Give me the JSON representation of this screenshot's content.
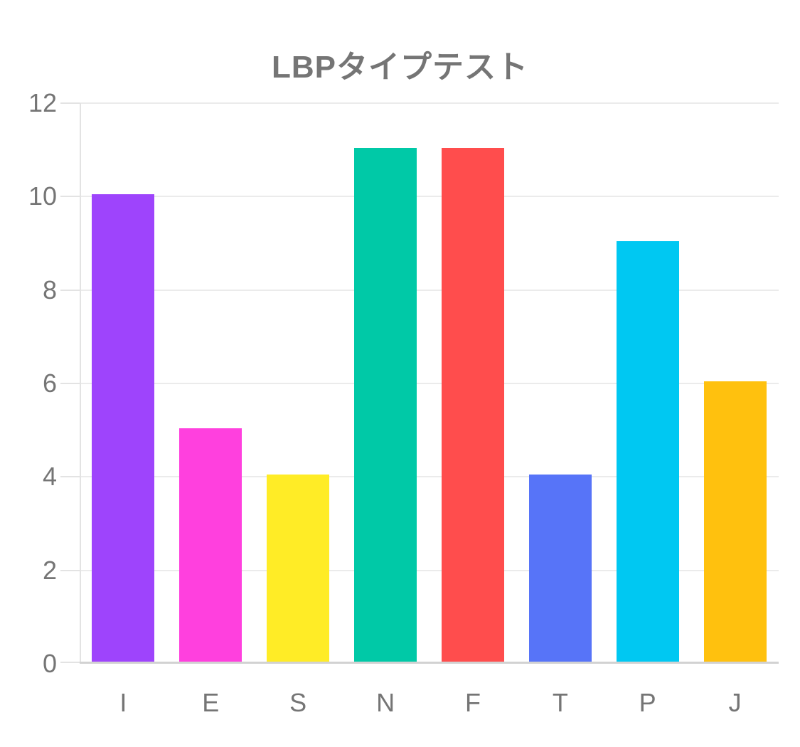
{
  "chart_data": {
    "type": "bar",
    "title": "LBPタイプテスト",
    "categories": [
      "I",
      "E",
      "S",
      "N",
      "F",
      "T",
      "P",
      "J"
    ],
    "values": [
      10,
      5,
      4,
      11,
      11,
      4,
      9,
      6
    ],
    "bar_colors": [
      "#9E44FC",
      "#FF40DE",
      "#FFEC26",
      "#00C9A7",
      "#FF4D4D",
      "#5774F8",
      "#00C8F2",
      "#FFC10E"
    ],
    "xlabel": "",
    "ylabel": "",
    "ylim": [
      0,
      12
    ],
    "yticks": [
      0,
      2,
      4,
      6,
      8,
      10,
      12
    ],
    "grid": "horizontal",
    "legend": "none",
    "colors": {
      "background": "#ffffff",
      "title_text": "#757575",
      "tick_label_text": "#757575",
      "gridline": "#ebebeb",
      "axis_line": "#e3e3e3",
      "baseline": "#d2d2d2"
    }
  }
}
